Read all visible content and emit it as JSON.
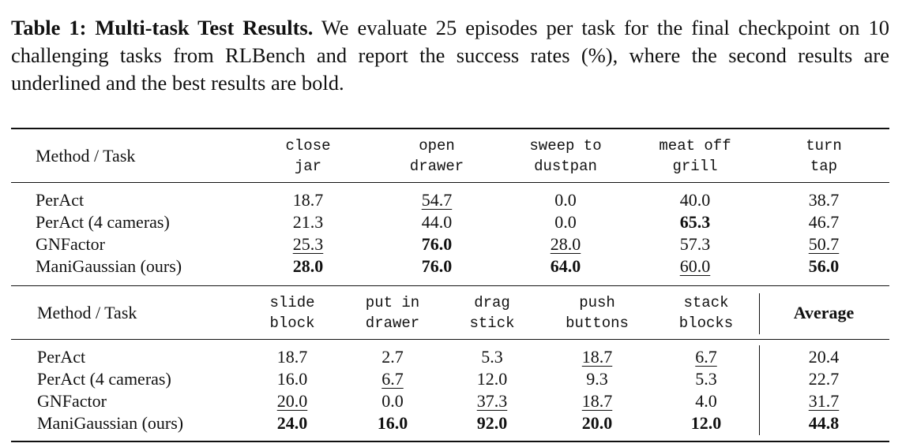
{
  "caption": {
    "label": "Table 1: Multi-task Test Results.",
    "text": "We evaluate 25 episodes per task for the final checkpoint on 10 challenging tasks from RLBench and report the success rates (%), where the second results are underlined and the best results are bold."
  },
  "tables": [
    {
      "header": [
        [
          "Method / Task"
        ],
        [
          "close",
          "jar"
        ],
        [
          "open",
          "drawer"
        ],
        [
          "sweep to",
          "dustpan"
        ],
        [
          "meat off",
          "grill"
        ],
        [
          "turn",
          "tap"
        ]
      ],
      "rows": [
        {
          "method": "PerAct",
          "cells": [
            "18.7",
            {
              "text": "54.7",
              "style": "underline"
            },
            "0.0",
            "40.0",
            "38.7"
          ]
        },
        {
          "method": "PerAct (4 cameras)",
          "cells": [
            "21.3",
            "44.0",
            "0.0",
            {
              "text": "65.3",
              "style": "bold"
            },
            "46.7"
          ]
        },
        {
          "method": "GNFactor",
          "cells": [
            {
              "text": "25.3",
              "style": "underline"
            },
            {
              "text": "76.0",
              "style": "bold"
            },
            {
              "text": "28.0",
              "style": "underline"
            },
            "57.3",
            {
              "text": "50.7",
              "style": "underline"
            }
          ]
        },
        {
          "method": "ManiGaussian (ours)",
          "cells": [
            {
              "text": "28.0",
              "style": "bold"
            },
            {
              "text": "76.0",
              "style": "bold"
            },
            {
              "text": "64.0",
              "style": "bold"
            },
            {
              "text": "60.0",
              "style": "underline"
            },
            {
              "text": "56.0",
              "style": "bold"
            }
          ]
        }
      ]
    },
    {
      "header": [
        [
          "Method / Task"
        ],
        [
          "slide",
          "block"
        ],
        [
          "put in",
          "drawer"
        ],
        [
          "drag",
          "stick"
        ],
        [
          "push",
          "buttons"
        ],
        [
          "stack",
          "blocks"
        ],
        [
          "Average"
        ]
      ],
      "rows": [
        {
          "method": "PerAct",
          "cells": [
            "18.7",
            "2.7",
            "5.3",
            {
              "text": "18.7",
              "style": "underline"
            },
            {
              "text": "6.7",
              "style": "underline"
            },
            "20.4"
          ]
        },
        {
          "method": "PerAct (4 cameras)",
          "cells": [
            "16.0",
            {
              "text": "6.7",
              "style": "underline"
            },
            "12.0",
            "9.3",
            "5.3",
            "22.7"
          ]
        },
        {
          "method": "GNFactor",
          "cells": [
            {
              "text": "20.0",
              "style": "underline"
            },
            "0.0",
            {
              "text": "37.3",
              "style": "underline"
            },
            {
              "text": "18.7",
              "style": "underline"
            },
            "4.0",
            {
              "text": "31.7",
              "style": "underline"
            }
          ]
        },
        {
          "method": "ManiGaussian (ours)",
          "cells": [
            {
              "text": "24.0",
              "style": "bold"
            },
            {
              "text": "16.0",
              "style": "bold"
            },
            {
              "text": "92.0",
              "style": "bold"
            },
            {
              "text": "20.0",
              "style": "bold"
            },
            {
              "text": "12.0",
              "style": "bold"
            },
            {
              "text": "44.8",
              "style": "bold"
            }
          ]
        }
      ]
    }
  ]
}
